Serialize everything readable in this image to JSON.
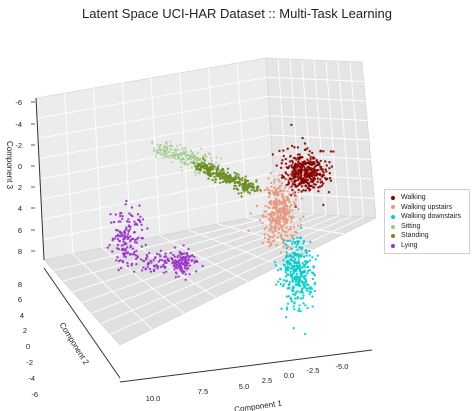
{
  "chart_data": {
    "type": "scatter",
    "projection": "3d",
    "title": "Latent Space UCI-HAR Dataset :: Multi-Task Learning",
    "xlabel": "Component 1",
    "ylabel": "Component 2",
    "zlabel": "Component 3",
    "x_ticks": [
      "10.0",
      "7.5",
      "5.0",
      "2.5",
      "0.0",
      "-2.5",
      "-5.0"
    ],
    "y_ticks": [
      "8",
      "6",
      "4",
      "2",
      "0",
      "-2",
      "-4",
      "-6"
    ],
    "z_ticks": [
      "-6",
      "-4",
      "-2",
      "0",
      "2",
      "4",
      "6",
      "8"
    ],
    "xlim": [
      -6.5,
      11
    ],
    "ylim": [
      -6.5,
      9.5
    ],
    "zlim": [
      -7,
      9
    ],
    "z_inverted": true,
    "grid": true,
    "legend_position": "right",
    "series": [
      {
        "name": "Walking",
        "color": "#8b0000",
        "center": [
          -2.5,
          4.5,
          -1.5
        ],
        "spread": [
          0.9,
          1.0,
          0.8
        ],
        "count": 380
      },
      {
        "name": "Walking upstairs",
        "color": "#e9967a",
        "center": [
          -0.5,
          3.5,
          2.8
        ],
        "spread": [
          1.0,
          1.0,
          1.2
        ],
        "count": 320
      },
      {
        "name": "Walking downstairs",
        "color": "#00ced1",
        "center": [
          -0.5,
          2.0,
          7.0
        ],
        "spread": [
          0.9,
          1.0,
          1.3
        ],
        "count": 320
      },
      {
        "name": "Sitting",
        "color": "#98c983",
        "center": [
          6.5,
          6.2,
          -1.2
        ],
        "spread": [
          1.5,
          1.6,
          1.2
        ],
        "count": 260
      },
      {
        "name": "Standing",
        "color": "#6b8e23",
        "center": [
          4.5,
          5.0,
          -0.8
        ],
        "spread": [
          0.9,
          0.8,
          0.7
        ],
        "count": 280
      },
      {
        "name": "Lying",
        "color": "#9932cc",
        "center": [
          8.0,
          5.0,
          5.5
        ],
        "spread": [
          1.6,
          1.5,
          1.6
        ],
        "count": 320
      }
    ]
  }
}
